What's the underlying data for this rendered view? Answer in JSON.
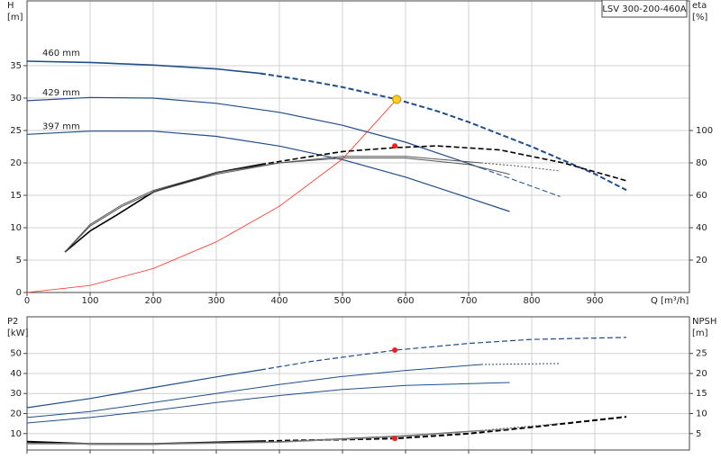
{
  "chart_data": [
    {
      "type": "line",
      "title": "LSV 300-200-460A",
      "y_label": "H",
      "y_unit": "[m]",
      "y2_label": "eta",
      "y2_unit": "[%]",
      "x_label": "Q [m³/h]",
      "xlim": [
        0,
        1050
      ],
      "xticks": [
        0,
        100,
        200,
        300,
        400,
        500,
        600,
        700,
        800,
        900
      ],
      "show_xtick_labels": true,
      "ylim": [
        0,
        45
      ],
      "yticks": [
        0,
        5,
        10,
        15,
        20,
        25,
        30,
        35
      ],
      "y2lim": [
        0,
        180
      ],
      "y2ticks": [
        20,
        40,
        60,
        80,
        100
      ],
      "grid": true,
      "series": [
        {
          "name": "460 mm",
          "color": "#1f4e8c",
          "linewidth": 1.6,
          "x": [
            0,
            100,
            200,
            300,
            370
          ],
          "values": [
            35.7,
            35.5,
            35.1,
            34.5,
            33.8
          ]
        },
        {
          "color": "#1f4e8c",
          "linestyle": "dashed",
          "linewidth": 2,
          "x": [
            370,
            450,
            500,
            586,
            650,
            700,
            800,
            900,
            950
          ],
          "values": [
            33.8,
            32.6,
            31.7,
            29.8,
            28.0,
            26.3,
            22.5,
            18.3,
            15.8
          ]
        },
        {
          "name": "429 mm",
          "color": "#1f4e8c",
          "linewidth": 1.2,
          "x": [
            0,
            100,
            200,
            300,
            400,
            500,
            600,
            700,
            720
          ],
          "values": [
            29.6,
            30.1,
            30.0,
            29.2,
            27.8,
            25.8,
            23.2,
            19.9,
            19.2
          ]
        },
        {
          "color": "#1f4e8c",
          "linestyle": "dashed",
          "linewidth": 1,
          "x": [
            720,
            780,
            845
          ],
          "values": [
            19.2,
            17.1,
            14.8
          ]
        },
        {
          "name": "397 mm",
          "color": "#1f4e8c",
          "linewidth": 1.2,
          "x": [
            0,
            100,
            200,
            300,
            400,
            500,
            600,
            700,
            765
          ],
          "values": [
            24.4,
            24.9,
            24.9,
            24.1,
            22.6,
            20.5,
            17.8,
            14.6,
            12.5
          ]
        },
        {
          "color": "#ff2a1a",
          "linewidth": 0.8,
          "x": [
            0,
            100,
            200,
            300,
            400,
            500,
            586
          ],
          "values": [
            0,
            1.1,
            3.7,
            7.8,
            13.3,
            20.6,
            29.8
          ]
        },
        {
          "color": "#000000",
          "axis": "y2",
          "linewidth": 1.6,
          "x": [
            60,
            100,
            143,
            200,
            300,
            370
          ],
          "values": [
            25,
            38,
            48,
            62,
            74,
            79
          ]
        },
        {
          "color": "#000000",
          "axis": "y2",
          "linestyle": "dashed",
          "linewidth": 1.6,
          "x": [
            370,
            450,
            500,
            586,
            650,
            750,
            850,
            950
          ],
          "values": [
            79,
            84,
            87,
            89.5,
            90.5,
            88,
            80,
            69
          ]
        },
        {
          "color": "#555555",
          "axis": "y2",
          "linewidth": 1,
          "x": [
            60,
            100,
            150,
            200,
            300,
            400,
            500,
            600,
            720
          ],
          "values": [
            25,
            41,
            53,
            62,
            73,
            80,
            84,
            84,
            80
          ]
        },
        {
          "color": "#555555",
          "axis": "y2",
          "linestyle": "dotted",
          "linewidth": 1,
          "x": [
            720,
            780,
            845
          ],
          "values": [
            80,
            78,
            75
          ]
        },
        {
          "color": "#555555",
          "axis": "y2",
          "linewidth": 1,
          "x": [
            60,
            100,
            150,
            200,
            300,
            400,
            500,
            600,
            700,
            765
          ],
          "values": [
            25,
            42,
            54,
            63,
            74,
            80,
            83,
            83,
            79,
            73
          ]
        }
      ],
      "markers": [
        {
          "x": 586,
          "y": 29.8,
          "color": "#ffd21f",
          "edge": "#e08a00"
        },
        {
          "x": 583,
          "y": 90.5,
          "axis": "y2",
          "color": "#ff1a1a"
        }
      ]
    },
    {
      "type": "line",
      "y_label": "P2",
      "y_unit": "[kW]",
      "y2_label": "NPSH",
      "y2_unit": "[m]",
      "xlim": [
        0,
        1050
      ],
      "xticks": [
        0,
        100,
        200,
        300,
        400,
        500,
        600,
        700,
        800,
        900
      ],
      "show_xtick_labels": false,
      "ylim": [
        1.8,
        68.3
      ],
      "yticks": [
        10,
        20,
        30,
        40,
        50
      ],
      "y2lim": [
        0.9,
        34.15
      ],
      "y2ticks": [
        5,
        10,
        15,
        20,
        25
      ],
      "grid": true,
      "series": [
        {
          "color": "#1f4e8c",
          "linewidth": 1.2,
          "x": [
            0,
            100,
            200,
            300,
            370
          ],
          "values": [
            22.9,
            27.5,
            33,
            38.3,
            41.8
          ]
        },
        {
          "color": "#1f4e8c",
          "linestyle": "dashed",
          "linewidth": 1.2,
          "x": [
            370,
            450,
            586,
            700,
            800,
            950
          ],
          "values": [
            41.8,
            46,
            51.7,
            55,
            57,
            58
          ]
        },
        {
          "color": "#1f4e8c",
          "linewidth": 1,
          "x": [
            0,
            100,
            200,
            300,
            400,
            500,
            600,
            720
          ],
          "values": [
            18,
            21,
            25.5,
            30,
            34.5,
            38.5,
            41.5,
            44.5
          ]
        },
        {
          "color": "#1f4e8c",
          "linestyle": "dotted",
          "linewidth": 1,
          "x": [
            720,
            845
          ],
          "values": [
            44.5,
            45
          ]
        },
        {
          "color": "#1f4e8c",
          "linewidth": 1,
          "x": [
            0,
            100,
            200,
            300,
            400,
            500,
            600,
            765
          ],
          "values": [
            15.3,
            18,
            21.5,
            25.5,
            29,
            32,
            34,
            35.5
          ]
        },
        {
          "color": "#000000",
          "axis": "y2",
          "linewidth": 2,
          "x": [
            0,
            100,
            200,
            300,
            370
          ],
          "values": [
            3.0,
            2.4,
            2.4,
            2.8,
            3.1
          ]
        },
        {
          "color": "#000000",
          "axis": "y2",
          "linestyle": "dashed",
          "linewidth": 2,
          "x": [
            370,
            500,
            586,
            700,
            800,
            950
          ],
          "values": [
            3.1,
            3.5,
            3.8,
            5.0,
            6.6,
            9.2
          ]
        },
        {
          "color": "#666666",
          "axis": "y2",
          "linewidth": 1,
          "x": [
            0,
            200,
            400,
            600,
            720
          ],
          "values": [
            2.6,
            2.5,
            3.0,
            4.5,
            5.8
          ]
        },
        {
          "color": "#666666",
          "axis": "y2",
          "linestyle": "dotted",
          "linewidth": 1,
          "x": [
            720,
            845
          ],
          "values": [
            5.8,
            7.5
          ]
        },
        {
          "color": "#888888",
          "axis": "y2",
          "linewidth": 1,
          "x": [
            0,
            200,
            400,
            600,
            765
          ],
          "values": [
            2.4,
            2.3,
            2.8,
            4.3,
            6.2
          ]
        }
      ],
      "markers": [
        {
          "x": 583,
          "y": 51.7,
          "color": "#ff1a1a"
        },
        {
          "x": 583,
          "y": 3.8,
          "axis": "y2",
          "color": "#ff1a1a"
        }
      ]
    }
  ]
}
